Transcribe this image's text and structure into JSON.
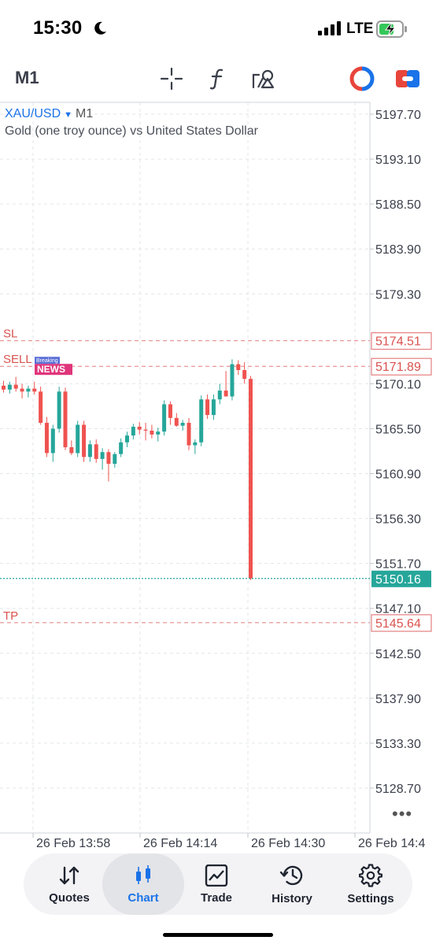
{
  "status_bar": {
    "time": "15:30",
    "network": "LTE"
  },
  "toolbar": {
    "timeframe": "M1"
  },
  "chart": {
    "symbol": "XAU/USD",
    "caret": "▼",
    "timeframe": "M1",
    "description": "Gold (one troy ounce) vs United States Dollar",
    "more": "•••",
    "badge": {
      "top": "Breaking",
      "bottom": "NEWS"
    },
    "colors": {
      "up": "#26a69a",
      "down": "#ef5350",
      "level": "#e06666",
      "bid": "#26a69a",
      "text_level": "#d9534f"
    }
  },
  "chart_data": {
    "type": "candlestick",
    "y_axis_labels": [
      "5197.70",
      "5193.10",
      "5188.50",
      "5183.90",
      "5179.30",
      "5174.51",
      "5171.89",
      "5170.10",
      "5165.50",
      "5160.90",
      "5156.30",
      "5151.70",
      "5150.16",
      "5147.10",
      "5145.64",
      "5142.50",
      "5137.90",
      "5133.30",
      "5128.70"
    ],
    "y_ticks": [
      5197.7,
      5193.1,
      5188.5,
      5183.9,
      5179.3,
      5170.1,
      5165.5,
      5160.9,
      5156.3,
      5151.7,
      5147.1,
      5142.5,
      5137.9,
      5133.3,
      5128.7
    ],
    "y_range": [
      5126.0,
      5200.0
    ],
    "x_labels": [
      "26 Feb 13:58",
      "26 Feb 14:14",
      "26 Feb 14:30",
      "26 Feb 14:4"
    ],
    "levels": [
      {
        "name": "SL",
        "price": 5174.51,
        "label": "5174.51"
      },
      {
        "name": "SELL",
        "price": 5171.89,
        "label": "5171.89"
      },
      {
        "name": "TP",
        "price": 5145.64,
        "label": "5145.64"
      }
    ],
    "bid": {
      "price": 5150.16,
      "label": "5150.16"
    },
    "candles": [
      [
        5169.9,
        5170.4,
        5169.2,
        5169.5
      ],
      [
        5169.5,
        5170.3,
        5169.1,
        5170.0
      ],
      [
        5170.0,
        5170.8,
        5169.3,
        5169.6
      ],
      [
        5169.6,
        5170.1,
        5168.6,
        5169.3
      ],
      [
        5169.3,
        5169.9,
        5168.7,
        5169.6
      ],
      [
        5169.6,
        5170.3,
        5169.0,
        5169.3
      ],
      [
        5169.3,
        5169.8,
        5165.9,
        5166.1
      ],
      [
        5166.1,
        5166.7,
        5162.6,
        5163.0
      ],
      [
        5163.0,
        5165.9,
        5162.1,
        5165.5
      ],
      [
        5165.5,
        5169.8,
        5165.1,
        5169.3
      ],
      [
        5169.3,
        5169.7,
        5163.3,
        5163.6
      ],
      [
        5163.6,
        5164.3,
        5162.8,
        5163.0
      ],
      [
        5163.0,
        5166.3,
        5162.6,
        5165.9
      ],
      [
        5165.9,
        5166.3,
        5162.1,
        5162.6
      ],
      [
        5162.6,
        5164.3,
        5162.1,
        5163.9
      ],
      [
        5163.9,
        5164.4,
        5162.0,
        5162.4
      ],
      [
        5162.4,
        5163.5,
        5161.3,
        5163.1
      ],
      [
        5163.1,
        5163.4,
        5160.1,
        5161.9
      ],
      [
        5161.9,
        5163.1,
        5161.5,
        5162.9
      ],
      [
        5162.9,
        5164.5,
        5162.6,
        5164.1
      ],
      [
        5164.1,
        5165.2,
        5163.6,
        5164.8
      ],
      [
        5164.8,
        5166.0,
        5164.4,
        5165.7
      ],
      [
        5165.7,
        5166.2,
        5164.9,
        5165.4
      ],
      [
        5165.4,
        5166.1,
        5164.3,
        5165.3
      ],
      [
        5165.3,
        5165.9,
        5164.5,
        5164.9
      ],
      [
        5164.9,
        5165.6,
        5164.2,
        5165.2
      ],
      [
        5165.2,
        5168.4,
        5164.8,
        5168.0
      ],
      [
        5168.0,
        5168.3,
        5165.9,
        5166.6
      ],
      [
        5166.6,
        5167.1,
        5165.7,
        5165.8
      ],
      [
        5165.8,
        5166.4,
        5165.3,
        5166.1
      ],
      [
        5166.1,
        5166.6,
        5163.3,
        5163.8
      ],
      [
        5163.8,
        5164.4,
        5162.9,
        5164.1
      ],
      [
        5164.1,
        5168.9,
        5163.7,
        5168.5
      ],
      [
        5168.5,
        5169.0,
        5166.5,
        5166.9
      ],
      [
        5166.9,
        5169.0,
        5166.4,
        5168.5
      ],
      [
        5168.5,
        5170.1,
        5168.0,
        5169.4
      ],
      [
        5169.4,
        5171.4,
        5168.8,
        5168.8
      ],
      [
        5168.8,
        5172.6,
        5168.4,
        5172.1
      ],
      [
        5172.1,
        5172.5,
        5171.0,
        5171.5
      ],
      [
        5171.5,
        5172.3,
        5170.1,
        5170.6
      ],
      [
        5170.6,
        5170.9,
        5150.0,
        5150.16
      ]
    ]
  },
  "nav": {
    "items": [
      {
        "label": "Quotes",
        "icon": "quotes-arrows-icon"
      },
      {
        "label": "Chart",
        "icon": "candlestick-icon"
      },
      {
        "label": "Trade",
        "icon": "trade-chart-icon"
      },
      {
        "label": "History",
        "icon": "history-clock-icon"
      },
      {
        "label": "Settings",
        "icon": "gear-icon"
      }
    ]
  }
}
